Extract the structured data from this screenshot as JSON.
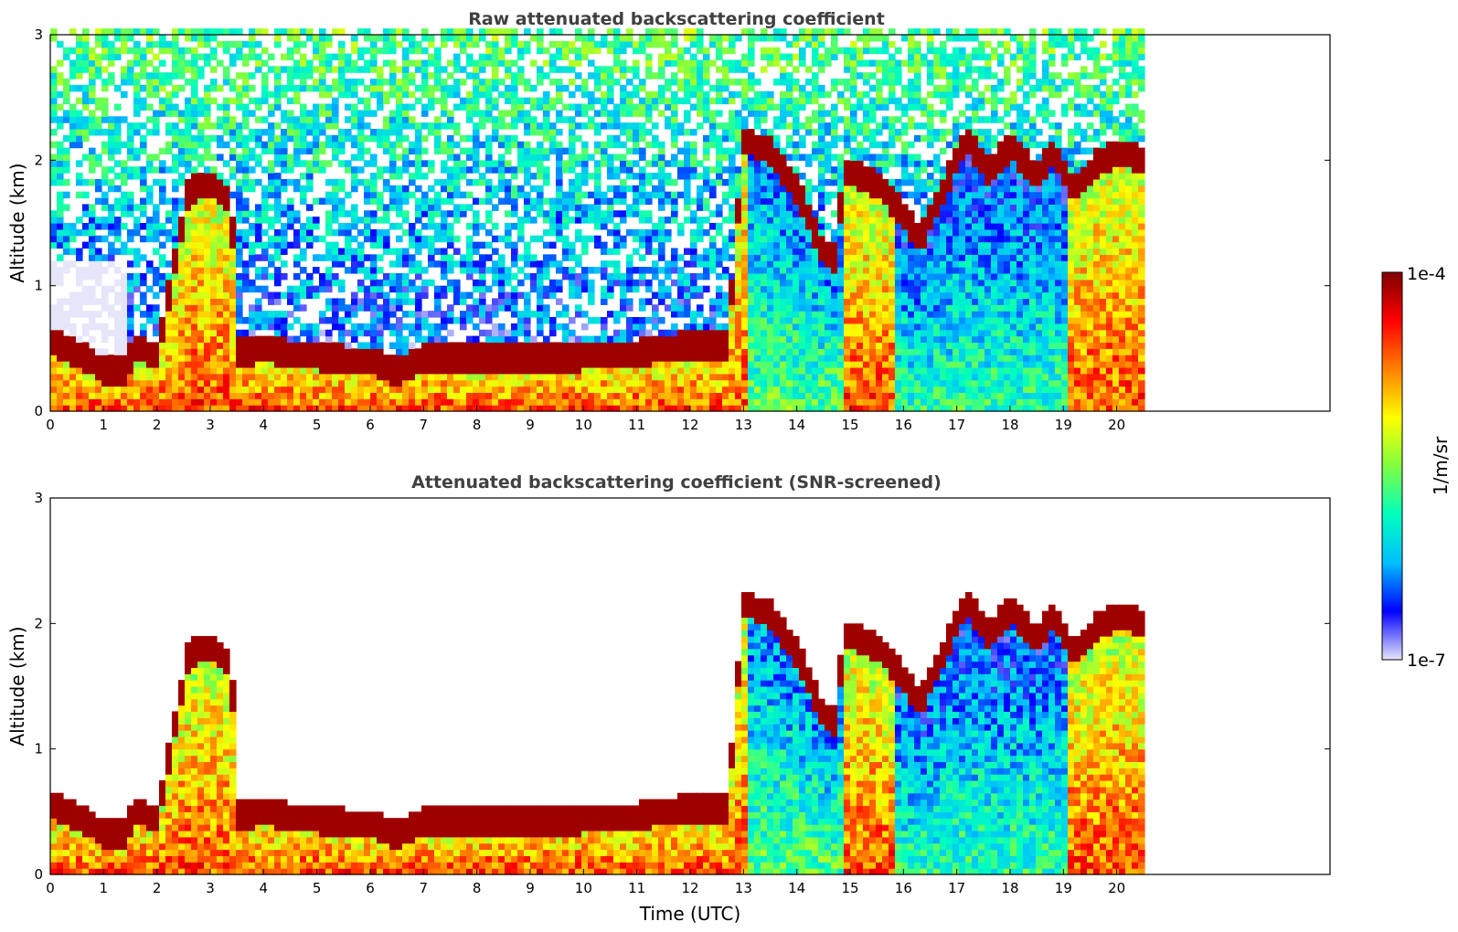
{
  "chart_data": [
    {
      "type": "heatmap",
      "title": "Raw attenuated backscattering coefficient",
      "xlabel": "",
      "ylabel": "Altitude (km)",
      "xlim": [
        0,
        24
      ],
      "ylim": [
        0,
        3
      ],
      "x_ticks": [
        "0",
        "1",
        "2",
        "3",
        "4",
        "5",
        "6",
        "7",
        "8",
        "9",
        "10",
        "11",
        "12",
        "13",
        "14",
        "15",
        "16",
        "17",
        "18",
        "19",
        "20"
      ],
      "y_ticks": [
        "0",
        "1",
        "2",
        "3"
      ],
      "data_x_range": [
        0,
        20.45
      ],
      "screened": false,
      "cloud_base_km": [
        [
          0,
          0.55
        ],
        [
          0.5,
          0.45
        ],
        [
          1.0,
          0.32
        ],
        [
          1.4,
          0.3
        ],
        [
          1.6,
          0.5
        ],
        [
          2.0,
          0.42
        ],
        [
          2.6,
          1.75
        ],
        [
          3.0,
          1.8
        ],
        [
          3.4,
          1.65
        ],
        [
          3.5,
          0.45
        ],
        [
          4.0,
          0.48
        ],
        [
          5.0,
          0.42
        ],
        [
          6.0,
          0.38
        ],
        [
          6.5,
          0.3
        ],
        [
          7.0,
          0.4
        ],
        [
          8.0,
          0.4
        ],
        [
          9.0,
          0.42
        ],
        [
          10.0,
          0.42
        ],
        [
          11.0,
          0.45
        ],
        [
          12.0,
          0.52
        ],
        [
          12.7,
          0.5
        ],
        [
          13.0,
          2.15
        ],
        [
          13.5,
          2.05
        ],
        [
          14.0,
          1.75
        ],
        [
          14.5,
          1.25
        ],
        [
          14.7,
          1.2
        ],
        [
          14.9,
          1.9
        ],
        [
          15.5,
          1.8
        ],
        [
          16.0,
          1.55
        ],
        [
          16.3,
          1.35
        ],
        [
          16.7,
          1.7
        ],
        [
          17.0,
          2.0
        ],
        [
          17.2,
          2.15
        ],
        [
          17.6,
          1.9
        ],
        [
          18.0,
          2.1
        ],
        [
          18.5,
          1.85
        ],
        [
          18.8,
          2.05
        ],
        [
          19.2,
          1.75
        ],
        [
          19.6,
          1.95
        ],
        [
          20.0,
          2.05
        ],
        [
          20.45,
          2.0
        ]
      ]
    },
    {
      "type": "heatmap",
      "title": "Attenuated backscattering coefficient (SNR-screened)",
      "xlabel": "Time (UTC)",
      "ylabel": "Altitude (km)",
      "xlim": [
        0,
        24
      ],
      "ylim": [
        0,
        3
      ],
      "x_ticks": [
        "0",
        "1",
        "2",
        "3",
        "4",
        "5",
        "6",
        "7",
        "8",
        "9",
        "10",
        "11",
        "12",
        "13",
        "14",
        "15",
        "16",
        "17",
        "18",
        "19",
        "20"
      ],
      "y_ticks": [
        "0",
        "1",
        "2",
        "3"
      ],
      "data_x_range": [
        0,
        20.45
      ],
      "screened": true,
      "cloud_base_km": [
        [
          0,
          0.55
        ],
        [
          0.5,
          0.45
        ],
        [
          1.0,
          0.32
        ],
        [
          1.4,
          0.3
        ],
        [
          1.6,
          0.5
        ],
        [
          2.0,
          0.42
        ],
        [
          2.6,
          1.75
        ],
        [
          3.0,
          1.8
        ],
        [
          3.4,
          1.65
        ],
        [
          3.5,
          0.45
        ],
        [
          4.0,
          0.48
        ],
        [
          5.0,
          0.42
        ],
        [
          6.0,
          0.38
        ],
        [
          6.5,
          0.3
        ],
        [
          7.0,
          0.4
        ],
        [
          8.0,
          0.4
        ],
        [
          9.0,
          0.42
        ],
        [
          10.0,
          0.42
        ],
        [
          11.0,
          0.45
        ],
        [
          12.0,
          0.52
        ],
        [
          12.7,
          0.5
        ],
        [
          13.0,
          2.15
        ],
        [
          13.5,
          2.05
        ],
        [
          14.0,
          1.75
        ],
        [
          14.5,
          1.25
        ],
        [
          14.7,
          1.2
        ],
        [
          14.9,
          1.9
        ],
        [
          15.5,
          1.8
        ],
        [
          16.0,
          1.55
        ],
        [
          16.3,
          1.35
        ],
        [
          16.7,
          1.7
        ],
        [
          17.0,
          2.0
        ],
        [
          17.2,
          2.15
        ],
        [
          17.6,
          1.9
        ],
        [
          18.0,
          2.1
        ],
        [
          18.5,
          1.85
        ],
        [
          18.8,
          2.05
        ],
        [
          19.2,
          1.75
        ],
        [
          19.6,
          1.95
        ],
        [
          20.0,
          2.05
        ],
        [
          20.45,
          2.0
        ]
      ]
    }
  ],
  "colorbar": {
    "label": "1/m/sr",
    "max_label": "1e-4",
    "min_label": "1e-7",
    "scale": "log",
    "range": [
      1e-07,
      0.0001
    ],
    "colormap": "jet",
    "colors": [
      "#e6e6fa",
      "#0000ff",
      "#00bfff",
      "#00ffbf",
      "#80ff40",
      "#ffff00",
      "#ff8000",
      "#ff0000",
      "#800000"
    ]
  }
}
